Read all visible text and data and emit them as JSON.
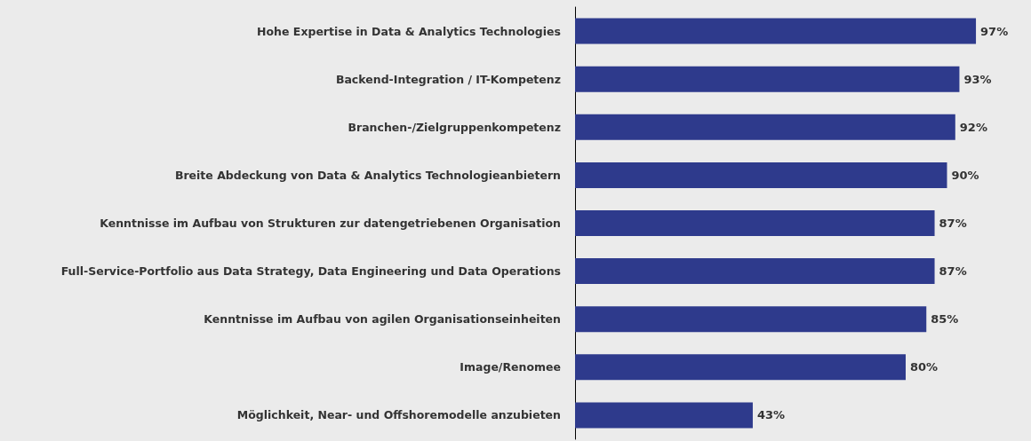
{
  "chart_data": {
    "type": "bar",
    "orientation": "horizontal",
    "categories": [
      "Hohe Expertise in Data & Analytics Technologies",
      "Backend-Integration / IT-Kompetenz",
      "Branchen-/Zielgruppenkompetenz",
      "Breite Abdeckung von Data & Analytics Technologieanbietern",
      "Kenntnisse im Aufbau von Strukturen zur datengetriebenen Organisation",
      "Full-Service-Portfolio aus Data Strategy, Data Engineering und Data Operations",
      "Kenntnisse im Aufbau von agilen Organisationseinheiten",
      "Image/Renomee",
      "Möglichkeit, Near- und Offshoremodelle anzubieten"
    ],
    "values": [
      97,
      93,
      92,
      90,
      87,
      87,
      85,
      80,
      43
    ],
    "value_labels": [
      "97%",
      "93%",
      "92%",
      "90%",
      "87%",
      "87%",
      "85%",
      "80%",
      "43%"
    ],
    "color": "#2e3a8c"
  }
}
